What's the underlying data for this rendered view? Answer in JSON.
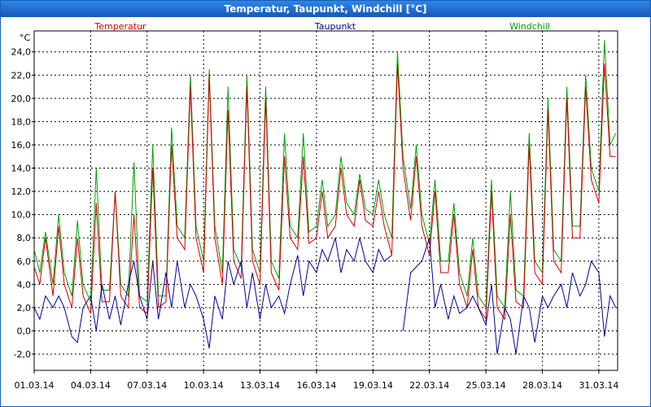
{
  "window": {
    "title": "Temperatur, Taupunkt, Windchill [°C]"
  },
  "colors": {
    "temperatur": "#d40000",
    "taupunkt": "#000099",
    "windchill": "#00a000",
    "grid": "#000000"
  },
  "chart_data": {
    "type": "line",
    "title": "Temperatur, Taupunkt, Windchill [°C]",
    "ylabel": "°C",
    "xlabel": "",
    "ylim": [
      -3.4,
      25.8
    ],
    "xlim": [
      0,
      31
    ],
    "grid": true,
    "legend_placement": "top",
    "yticks": [
      -2,
      0,
      2,
      4,
      6,
      8,
      10,
      12,
      14,
      16,
      18,
      20,
      22,
      24
    ],
    "ytick_labels": [
      "-2,0",
      "0,0",
      "2,0",
      "4,0",
      "6,0",
      "8,0",
      "10,0",
      "12,0",
      "14,0",
      "16,0",
      "18,0",
      "20,0",
      "22,0",
      "24,0"
    ],
    "xtick_labels": [
      "01.03.14",
      "04.03.14",
      "07.03.14",
      "10.03.14",
      "13.03.14",
      "16.03.14",
      "19.03.14",
      "22.03.14",
      "25.03.14",
      "28.03.14",
      "31.03.14"
    ],
    "xtick_days": [
      0,
      3,
      6,
      9,
      12,
      15,
      18,
      21,
      24,
      27,
      30
    ],
    "series": [
      {
        "name": "Temperatur",
        "color": "#d40000",
        "x": [
          0,
          0.3,
          0.6,
          1.0,
          1.3,
          1.6,
          2.0,
          2.3,
          2.6,
          3.0,
          3.3,
          3.6,
          4.0,
          4.3,
          4.6,
          5.0,
          5.3,
          5.6,
          6.0,
          6.3,
          6.6,
          7.0,
          7.3,
          7.6,
          8.0,
          8.3,
          8.6,
          9.0,
          9.3,
          9.6,
          10.0,
          10.3,
          10.6,
          11.0,
          11.3,
          11.6,
          12.0,
          12.3,
          12.6,
          13.0,
          13.3,
          13.6,
          14.0,
          14.3,
          14.6,
          15.0,
          15.3,
          15.6,
          16.0,
          16.3,
          16.6,
          17.0,
          17.3,
          17.6,
          18.0,
          18.3,
          18.6,
          19.0,
          19.3,
          19.6,
          20.0,
          20.3,
          20.6,
          21.0,
          21.3,
          21.6,
          22.0,
          22.3,
          22.6,
          23.0,
          23.3,
          23.6,
          24.0,
          24.3,
          24.6,
          25.0,
          25.3,
          25.6,
          26.0,
          26.3,
          26.6,
          27.0,
          27.3,
          27.6,
          28.0,
          28.3,
          28.6,
          29.0,
          29.3,
          29.6,
          30.0,
          30.3,
          30.6,
          30.9
        ],
        "values": [
          5.5,
          4.0,
          8.0,
          3.0,
          9.0,
          4.0,
          2.0,
          8.0,
          3.0,
          1.5,
          11.0,
          2.5,
          2.5,
          12.0,
          3.0,
          2.0,
          10.0,
          2.0,
          1.5,
          14.0,
          2.0,
          2.5,
          16.0,
          8.0,
          7.0,
          21.0,
          8.0,
          5.0,
          22.0,
          8.0,
          4.0,
          19.0,
          6.0,
          4.5,
          21.0,
          6.0,
          4.0,
          20.0,
          5.0,
          3.5,
          15.0,
          8.0,
          7.0,
          15.0,
          7.5,
          8.0,
          12.0,
          8.0,
          9.0,
          14.0,
          10.0,
          9.0,
          13.0,
          9.5,
          9.0,
          12.0,
          9.0,
          6.5,
          23.0,
          14.0,
          9.5,
          15.0,
          9.0,
          6.5,
          12.0,
          5.0,
          5.0,
          10.0,
          4.0,
          2.0,
          7.0,
          2.0,
          1.0,
          12.0,
          2.0,
          1.0,
          10.0,
          2.5,
          2.0,
          16.0,
          5.0,
          4.0,
          19.0,
          6.0,
          5.0,
          20.0,
          8.0,
          8.0,
          21.0,
          13.0,
          11.0,
          23.0,
          15.0,
          15.0
        ]
      },
      {
        "name": "Taupunkt",
        "color": "#000099",
        "x": [
          0,
          0.3,
          0.6,
          1.0,
          1.3,
          1.6,
          2.0,
          2.3,
          2.6,
          3.0,
          3.3,
          3.6,
          4.0,
          4.3,
          4.6,
          5.0,
          5.3,
          5.6,
          6.0,
          6.3,
          6.6,
          7.0,
          7.3,
          7.6,
          8.0,
          8.3,
          8.6,
          9.0,
          9.3,
          9.6,
          10.0,
          10.3,
          10.6,
          11.0,
          11.3,
          11.6,
          12.0,
          12.3,
          12.6,
          13.0,
          13.3,
          13.6,
          14.0,
          14.3,
          14.6,
          15.0,
          15.3,
          15.6,
          16.0,
          16.3,
          16.6,
          17.0,
          17.3,
          17.6,
          18.0,
          18.3,
          18.6,
          19.0,
          null,
          19.6,
          20.0,
          20.3,
          20.6,
          21.0,
          21.3,
          21.6,
          22.0,
          22.3,
          22.6,
          23.0,
          23.3,
          23.6,
          24.0,
          24.3,
          24.6,
          25.0,
          25.3,
          25.6,
          26.0,
          26.3,
          26.6,
          27.0,
          27.3,
          27.6,
          28.0,
          28.3,
          28.6,
          29.0,
          29.3,
          29.6,
          30.0,
          30.3,
          30.6,
          30.9
        ],
        "values": [
          2.0,
          1.0,
          3.0,
          2.0,
          3.0,
          2.0,
          -0.5,
          -1.0,
          2.0,
          3.0,
          0.0,
          4.0,
          1.0,
          3.0,
          0.5,
          4.0,
          6.0,
          3.0,
          1.0,
          6.0,
          1.0,
          5.0,
          2.0,
          6.0,
          2.0,
          4.0,
          3.0,
          1.0,
          -1.5,
          3.0,
          1.0,
          6.0,
          4.0,
          6.0,
          2.0,
          5.0,
          1.0,
          4.0,
          2.0,
          3.0,
          1.5,
          4.0,
          6.5,
          3.0,
          6.0,
          5.0,
          7.0,
          6.0,
          8.0,
          5.0,
          7.0,
          6.0,
          8.0,
          6.0,
          5.0,
          7.0,
          6.0,
          6.5,
          null,
          0.0,
          5.0,
          5.5,
          6.0,
          8.0,
          2.0,
          4.0,
          1.0,
          3.0,
          1.5,
          2.0,
          3.0,
          2.0,
          0.5,
          4.0,
          -2.0,
          2.0,
          1.0,
          -2.0,
          3.0,
          2.0,
          -1.0,
          3.0,
          2.0,
          3.0,
          4.0,
          2.0,
          5.0,
          3.0,
          4.0,
          6.0,
          5.0,
          -0.5,
          3.0,
          2.0
        ]
      },
      {
        "name": "Windchill",
        "color": "#00a000",
        "x": [
          0,
          0.3,
          0.6,
          1.0,
          1.3,
          1.6,
          2.0,
          2.3,
          2.6,
          3.0,
          3.3,
          3.6,
          4.0,
          4.3,
          4.6,
          5.0,
          5.3,
          5.6,
          6.0,
          6.3,
          6.6,
          7.0,
          7.3,
          7.6,
          8.0,
          8.3,
          8.6,
          9.0,
          9.3,
          9.6,
          10.0,
          10.3,
          10.6,
          11.0,
          11.3,
          11.6,
          12.0,
          12.3,
          12.6,
          13.0,
          13.3,
          13.6,
          14.0,
          14.3,
          14.6,
          15.0,
          15.3,
          15.6,
          16.0,
          16.3,
          16.6,
          17.0,
          17.3,
          17.6,
          18.0,
          18.3,
          18.6,
          19.0,
          19.3,
          19.6,
          20.0,
          20.3,
          20.6,
          21.0,
          21.3,
          21.6,
          22.0,
          22.3,
          22.6,
          23.0,
          23.3,
          23.6,
          24.0,
          24.3,
          24.6,
          25.0,
          25.3,
          25.6,
          26.0,
          26.3,
          26.6,
          27.0,
          27.3,
          27.6,
          28.0,
          28.3,
          28.6,
          29.0,
          29.3,
          29.6,
          30.0,
          30.3,
          30.6,
          30.9
        ],
        "values": [
          7.0,
          5.0,
          8.5,
          4.0,
          10.0,
          5.0,
          3.0,
          9.5,
          4.0,
          2.5,
          14.0,
          3.5,
          3.5,
          12.0,
          4.0,
          3.0,
          14.5,
          3.0,
          2.5,
          16.0,
          3.0,
          3.0,
          17.5,
          9.0,
          8.0,
          22.0,
          9.0,
          6.0,
          22.5,
          9.0,
          5.0,
          21.0,
          7.0,
          5.5,
          22.0,
          7.0,
          5.0,
          21.0,
          6.0,
          4.5,
          17.0,
          9.0,
          8.0,
          17.0,
          8.5,
          9.0,
          13.0,
          9.0,
          10.0,
          15.0,
          11.0,
          10.0,
          13.5,
          10.5,
          10.0,
          13.0,
          10.0,
          8.0,
          24.0,
          15.0,
          10.5,
          16.0,
          10.0,
          7.5,
          13.0,
          6.0,
          6.0,
          11.0,
          5.0,
          3.0,
          8.0,
          3.0,
          2.0,
          13.0,
          3.0,
          2.0,
          12.0,
          3.5,
          3.0,
          17.0,
          6.0,
          5.0,
          20.0,
          7.0,
          6.0,
          21.0,
          9.0,
          9.0,
          22.0,
          14.0,
          12.0,
          25.0,
          16.0,
          17.0
        ]
      }
    ]
  }
}
